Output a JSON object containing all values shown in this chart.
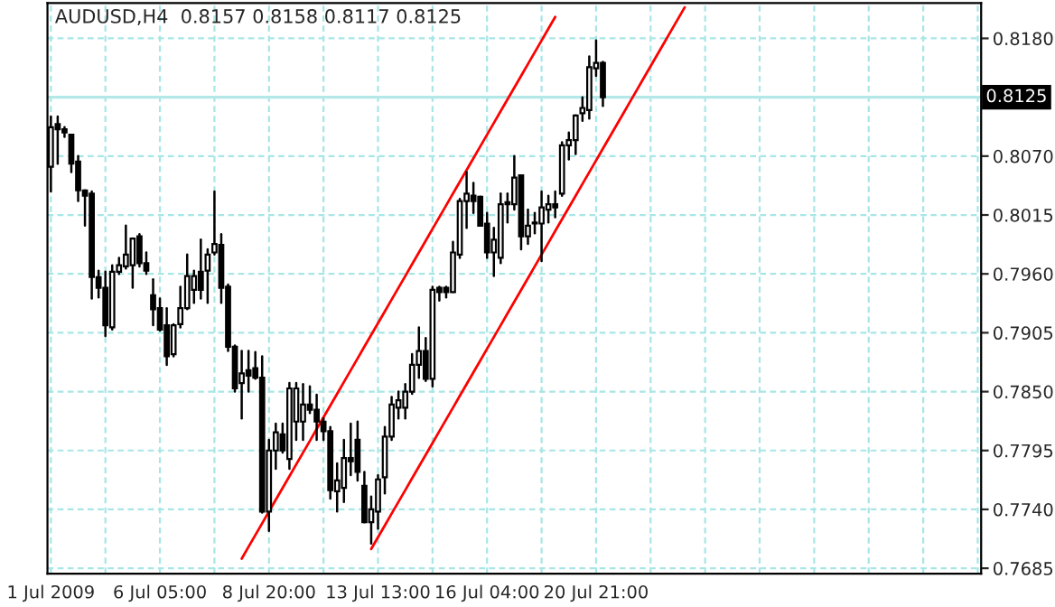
{
  "chart_data": {
    "type": "candlestick",
    "title": "AUDUSD,H4  0.8157 0.8158 0.8117 0.8125",
    "categories": [
      "1 Jul 2009",
      null,
      null,
      null,
      null,
      null,
      null,
      null,
      null,
      null,
      null,
      null,
      null,
      null,
      null,
      null,
      "6 Jul 05:00",
      null,
      null,
      null,
      null,
      null,
      null,
      null,
      null,
      null,
      null,
      null,
      null,
      null,
      null,
      null,
      "8 Jul 20:00",
      null,
      null,
      null,
      null,
      null,
      null,
      null,
      null,
      null,
      null,
      null,
      null,
      null,
      null,
      null,
      "13 Jul 13:00",
      null,
      null,
      null,
      null,
      null,
      null,
      null,
      null,
      null,
      null,
      null,
      null,
      null,
      null,
      null,
      "16 Jul 04:00",
      null,
      null,
      null,
      null,
      null,
      null,
      null,
      null,
      null,
      null,
      null,
      null,
      null,
      null,
      null,
      "20 Jul 21:00",
      null,
      null,
      null,
      null,
      null,
      null,
      null,
      null,
      null,
      null,
      null,
      null,
      null,
      null,
      null,
      null,
      null,
      null,
      null,
      null,
      null,
      null,
      null,
      null,
      null,
      null,
      null,
      null,
      null,
      null,
      null,
      null,
      null,
      null,
      null,
      null,
      null,
      null,
      null,
      null,
      null,
      null,
      null,
      null,
      null,
      null,
      null,
      null,
      null,
      null,
      null,
      null,
      null,
      null,
      null,
      null
    ],
    "ohlc": [
      [
        0.806,
        0.8107,
        0.8037,
        0.8097
      ],
      [
        0.81,
        0.8107,
        0.8063,
        0.8095
      ],
      [
        0.8095,
        0.8097,
        0.8088,
        0.8092
      ],
      [
        0.809,
        0.809,
        0.8055,
        0.8063
      ],
      [
        0.8065,
        0.807,
        0.8028,
        0.8038
      ],
      [
        0.8038,
        0.8038,
        0.8005,
        0.8033
      ],
      [
        0.8035,
        0.8037,
        0.7937,
        0.7957
      ],
      [
        0.7957,
        0.7963,
        0.7938,
        0.7947
      ],
      [
        0.7947,
        0.7962,
        0.7902,
        0.7912
      ],
      [
        0.791,
        0.7968,
        0.7908,
        0.7962
      ],
      [
        0.7962,
        0.7975,
        0.796,
        0.7968
      ],
      [
        0.7967,
        0.8005,
        0.7965,
        0.7978
      ],
      [
        0.7968,
        0.7993,
        0.7947,
        0.7993
      ],
      [
        0.7995,
        0.7997,
        0.7967,
        0.797
      ],
      [
        0.797,
        0.798,
        0.796,
        0.7963
      ],
      [
        0.794,
        0.7955,
        0.7912,
        0.7927
      ],
      [
        0.7928,
        0.7937,
        0.7907,
        0.7908
      ],
      [
        0.7912,
        0.7928,
        0.7875,
        0.7883
      ],
      [
        0.7885,
        0.7913,
        0.7883,
        0.7912
      ],
      [
        0.7913,
        0.7948,
        0.791,
        0.7928
      ],
      [
        0.7928,
        0.7978,
        0.7927,
        0.7958
      ],
      [
        0.7945,
        0.7963,
        0.7933,
        0.7958
      ],
      [
        0.7962,
        0.7992,
        0.7937,
        0.7945
      ],
      [
        0.7963,
        0.7983,
        0.7933,
        0.7978
      ],
      [
        0.798,
        0.8037,
        0.7978,
        0.7988
      ],
      [
        0.7987,
        0.7997,
        0.7933,
        0.7947
      ],
      [
        0.7948,
        0.795,
        0.7888,
        0.7892
      ],
      [
        0.7892,
        0.7893,
        0.785,
        0.7853
      ],
      [
        0.7858,
        0.7888,
        0.7825,
        0.7867
      ],
      [
        0.787,
        0.7888,
        0.785,
        0.7865
      ],
      [
        0.7872,
        0.7887,
        0.7862,
        0.7863
      ],
      [
        0.7863,
        0.7883,
        0.7737,
        0.7738
      ],
      [
        0.7738,
        0.7805,
        0.772,
        0.7795
      ],
      [
        0.7795,
        0.782,
        0.7778,
        0.7812
      ],
      [
        0.781,
        0.782,
        0.7793,
        0.7795
      ],
      [
        0.7787,
        0.7858,
        0.7778,
        0.7853
      ],
      [
        0.7822,
        0.7858,
        0.7805,
        0.7853
      ],
      [
        0.7822,
        0.7857,
        0.7805,
        0.7838
      ],
      [
        0.7838,
        0.7855,
        0.783,
        0.7833
      ],
      [
        0.7833,
        0.7847,
        0.7805,
        0.7822
      ],
      [
        0.7822,
        0.7825,
        0.7805,
        0.7813
      ],
      [
        0.7813,
        0.7817,
        0.775,
        0.7758
      ],
      [
        0.7757,
        0.7783,
        0.7738,
        0.7767
      ],
      [
        0.776,
        0.7805,
        0.7747,
        0.7788
      ],
      [
        0.7788,
        0.782,
        0.7772,
        0.7785
      ],
      [
        0.7805,
        0.7822,
        0.7767,
        0.7775
      ],
      [
        0.7762,
        0.7775,
        0.7728,
        0.7728
      ],
      [
        0.7728,
        0.7752,
        0.7708,
        0.774
      ],
      [
        0.7738,
        0.7772,
        0.7722,
        0.7768
      ],
      [
        0.777,
        0.7817,
        0.7755,
        0.7808
      ],
      [
        0.7808,
        0.7845,
        0.7805,
        0.7838
      ],
      [
        0.7835,
        0.785,
        0.7825,
        0.7842
      ],
      [
        0.7835,
        0.7857,
        0.7825,
        0.785
      ],
      [
        0.785,
        0.7885,
        0.7848,
        0.7875
      ],
      [
        0.7875,
        0.791,
        0.7863,
        0.7888
      ],
      [
        0.7888,
        0.79,
        0.786,
        0.7862
      ],
      [
        0.7862,
        0.7948,
        0.7855,
        0.7945
      ],
      [
        0.7947,
        0.7948,
        0.7935,
        0.7943
      ],
      [
        0.7947,
        0.7948,
        0.7938,
        0.7943
      ],
      [
        0.7943,
        0.799,
        0.7943,
        0.798
      ],
      [
        0.7978,
        0.803,
        0.7975,
        0.8028
      ],
      [
        0.8028,
        0.8055,
        0.8003,
        0.8035
      ],
      [
        0.8033,
        0.8045,
        0.8017,
        0.8028
      ],
      [
        0.8032,
        0.8032,
        0.8005,
        0.8005
      ],
      [
        0.8007,
        0.8017,
        0.7975,
        0.798
      ],
      [
        0.798,
        0.8003,
        0.7958,
        0.7992
      ],
      [
        0.7975,
        0.8035,
        0.797,
        0.8025
      ],
      [
        0.8025,
        0.8035,
        0.8008,
        0.8027
      ],
      [
        0.8025,
        0.807,
        0.802,
        0.805
      ],
      [
        0.8052,
        0.8052,
        0.7983,
        0.7995
      ],
      [
        0.7995,
        0.802,
        0.7988,
        0.8005
      ],
      [
        0.8007,
        0.8017,
        0.7998,
        0.8008
      ],
      [
        0.8007,
        0.8037,
        0.7972,
        0.8022
      ],
      [
        0.802,
        0.8033,
        0.8008,
        0.8025
      ],
      [
        0.8025,
        0.8037,
        0.8013,
        0.8022
      ],
      [
        0.8035,
        0.8083,
        0.8033,
        0.808
      ],
      [
        0.808,
        0.8092,
        0.8067,
        0.8085
      ],
      [
        0.8085,
        0.8108,
        0.8072,
        0.8108
      ],
      [
        0.811,
        0.8125,
        0.8103,
        0.8115
      ],
      [
        0.8113,
        0.8163,
        0.8105,
        0.8153
      ],
      [
        0.8152,
        0.8178,
        0.8145,
        0.8157
      ],
      [
        0.8157,
        0.8158,
        0.8117,
        0.8125
      ],
      null,
      null,
      null,
      null,
      null,
      null,
      null,
      null,
      null,
      null,
      null,
      null,
      null,
      null,
      null,
      null,
      null,
      null,
      null,
      null,
      null,
      null,
      null,
      null,
      null,
      null,
      null,
      null,
      null,
      null,
      null,
      null,
      null,
      null,
      null,
      null,
      null,
      null,
      null,
      null,
      null,
      null,
      null,
      null,
      null,
      null,
      null,
      null,
      null,
      null,
      null,
      null,
      null,
      null,
      null
    ],
    "series": [
      {
        "type": "line",
        "color": "#ff0000",
        "values": [
          null,
          null,
          null,
          null,
          null,
          null,
          null,
          null,
          null,
          null,
          null,
          null,
          null,
          null,
          null,
          null,
          null,
          null,
          null,
          null,
          null,
          null,
          null,
          null,
          null,
          null,
          null,
          null,
          0.7694,
          0.7705,
          0.7716,
          0.7727,
          0.7738,
          0.7749,
          0.776,
          0.7771,
          0.7782,
          0.7793,
          0.7804,
          0.7815,
          0.7826,
          0.7837,
          0.7848,
          0.7859,
          0.787,
          0.7881,
          0.7892,
          0.7903,
          0.7914,
          0.7925,
          0.7936,
          0.7947,
          0.7958,
          0.7969,
          0.798,
          0.7991,
          0.8002,
          0.8013,
          0.8024,
          0.8035,
          0.8046,
          0.8057,
          0.8068,
          0.8079,
          0.809,
          0.8101,
          0.8112,
          0.8123,
          0.8134,
          0.8145,
          0.8156,
          0.8167,
          0.8178,
          0.8189,
          0.82,
          null,
          null,
          null,
          null,
          null,
          null,
          null,
          null,
          null,
          null,
          null,
          null,
          null,
          null,
          null,
          null,
          null,
          null,
          null,
          null,
          null,
          null,
          null,
          null,
          null,
          null,
          null,
          null,
          null,
          null,
          null,
          null,
          null,
          null,
          null,
          null,
          null,
          null,
          null,
          null,
          null,
          null,
          null,
          null,
          null,
          null,
          null,
          null,
          null,
          null,
          null,
          null,
          null,
          null,
          null,
          null,
          null,
          null,
          null,
          null,
          null,
          null
        ]
      },
      {
        "type": "line",
        "color": "#ff0000",
        "values": [
          null,
          null,
          null,
          null,
          null,
          null,
          null,
          null,
          null,
          null,
          null,
          null,
          null,
          null,
          null,
          null,
          null,
          null,
          null,
          null,
          null,
          null,
          null,
          null,
          null,
          null,
          null,
          null,
          null,
          null,
          null,
          null,
          null,
          null,
          null,
          null,
          null,
          null,
          null,
          null,
          null,
          null,
          null,
          null,
          null,
          null,
          null,
          0.7703,
          0.7714,
          0.7725,
          0.7736,
          0.7747,
          0.7758,
          0.7769,
          0.778,
          0.7791,
          0.7802,
          0.7813,
          0.7824,
          0.7835,
          0.7846,
          0.7857,
          0.7868,
          0.7879,
          0.789,
          0.7901,
          0.7912,
          0.7923,
          0.7934,
          0.7945,
          0.7956,
          0.7967,
          0.7978,
          0.7989,
          0.8,
          0.8011,
          0.8022,
          0.8033,
          0.8044,
          0.8055,
          0.8066,
          0.8077,
          0.8088,
          0.8099,
          0.811,
          0.8121,
          0.8132,
          0.8143,
          0.8154,
          0.8165,
          0.8176,
          0.8187,
          0.8198,
          0.8209,
          null,
          null,
          null,
          null,
          null,
          null,
          null,
          null,
          null,
          null,
          null,
          null,
          null,
          null,
          null,
          null,
          null,
          null,
          null,
          null,
          null,
          null,
          null,
          null,
          null,
          null,
          null,
          null,
          null,
          null,
          null,
          null,
          null,
          null,
          null,
          null,
          null,
          null,
          null,
          null,
          null,
          null,
          null
        ]
      }
    ],
    "ylim": [
      0.768,
      0.8213
    ],
    "yticks": [
      {
        "value": 0.818,
        "label": "0.8180"
      },
      {
        "value": 0.807,
        "label": "0.8070"
      },
      {
        "value": 0.8015,
        "label": "0.8015"
      },
      {
        "value": 0.796,
        "label": "0.7960"
      },
      {
        "value": 0.7905,
        "label": "0.7905"
      },
      {
        "value": 0.785,
        "label": "0.7850"
      },
      {
        "value": 0.7795,
        "label": "0.7795"
      },
      {
        "value": 0.774,
        "label": "0.7740"
      },
      {
        "value": 0.7685,
        "label": "0.7685"
      }
    ],
    "ref_lines": [
      {
        "axis": "y",
        "value": 0.8125,
        "label": "0.8125",
        "color": "#b4e8e8"
      }
    ],
    "grid": true
  }
}
